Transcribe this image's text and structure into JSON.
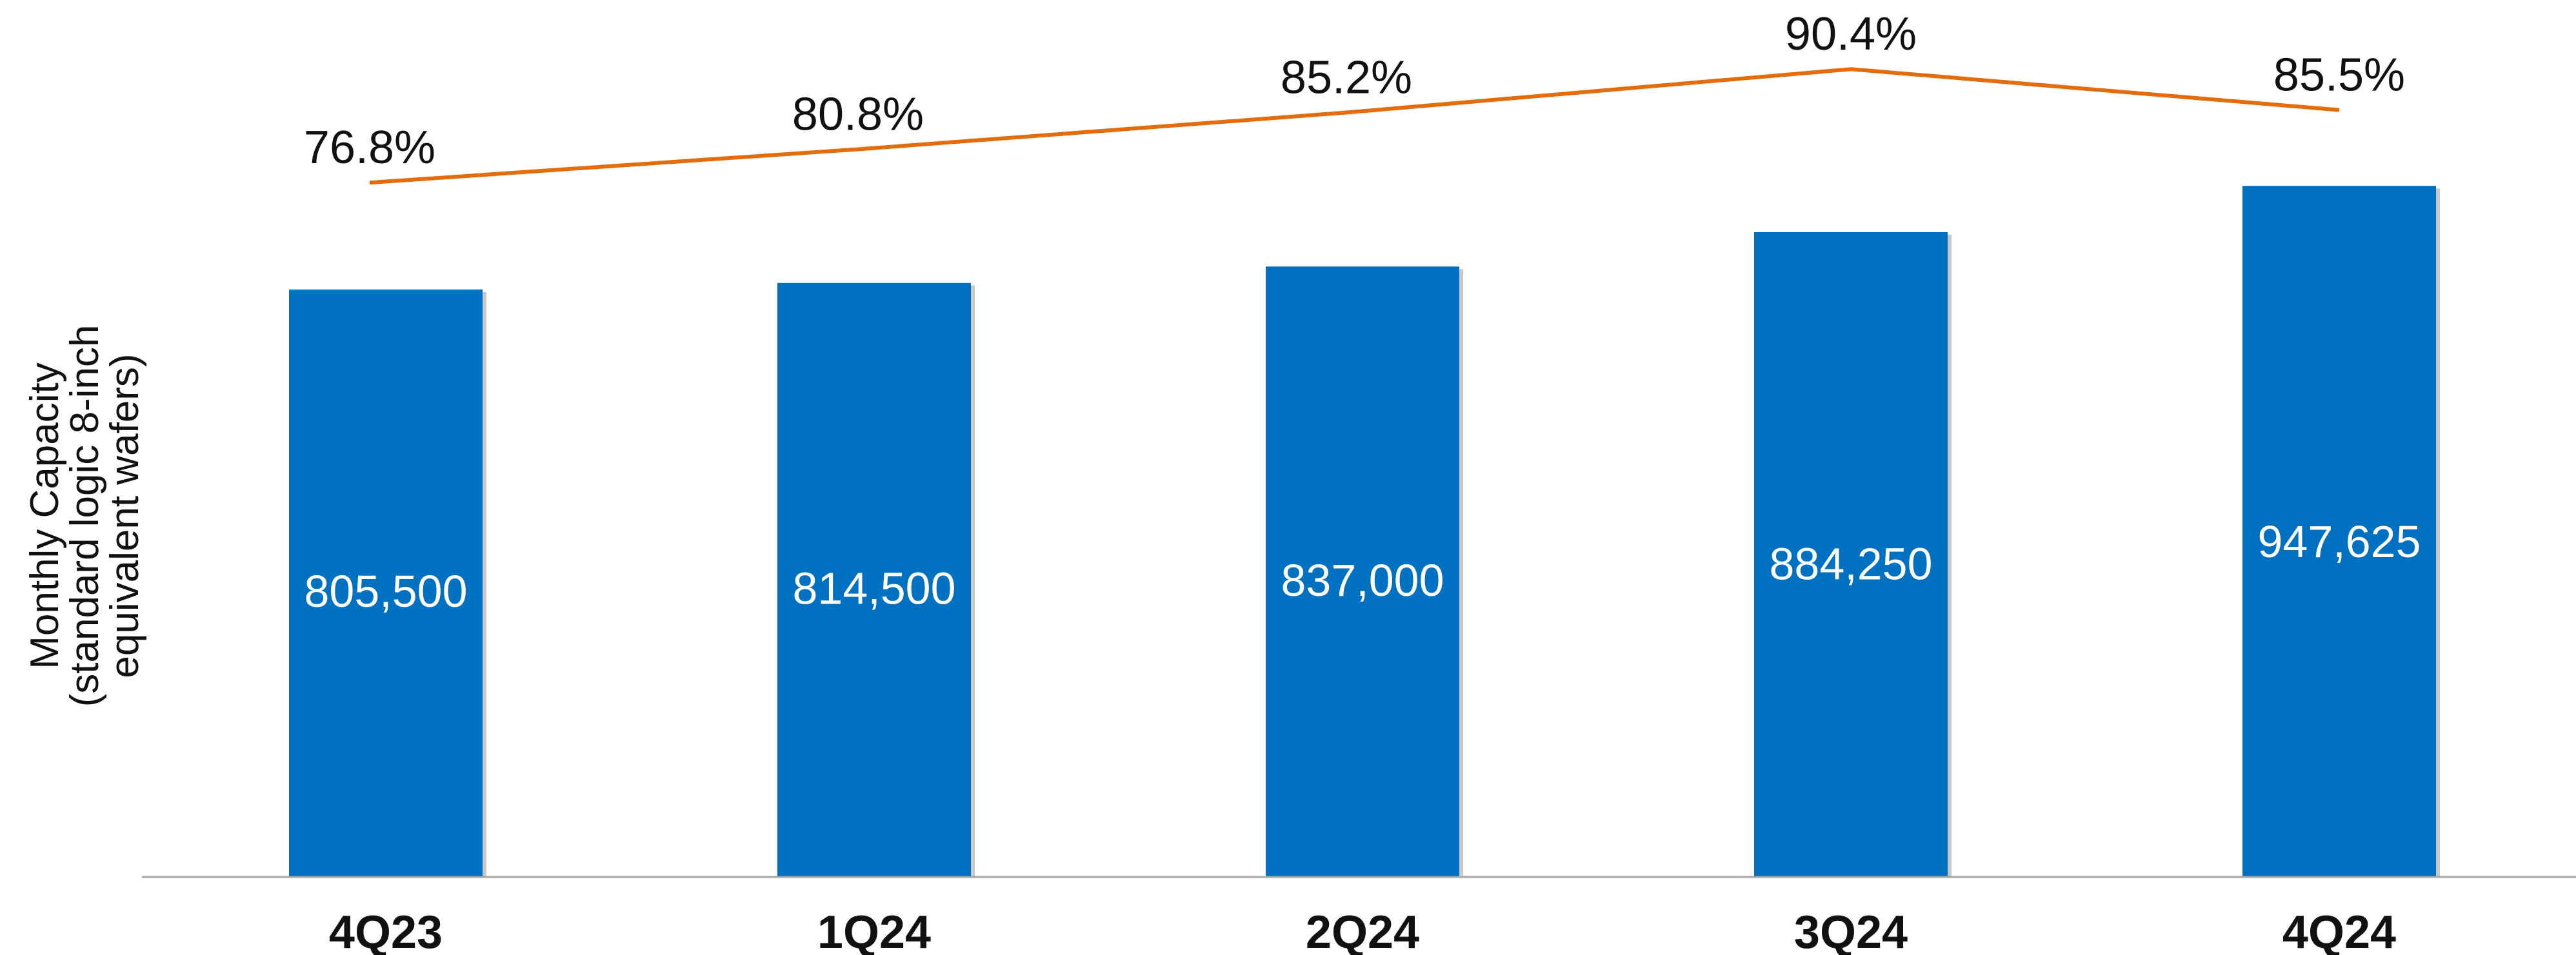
{
  "chart_data": {
    "type": "bar",
    "title": "",
    "categories": [
      "4Q23",
      "1Q24",
      "2Q24",
      "3Q24",
      "4Q24"
    ],
    "series": [
      {
        "type": "bar",
        "values": [
          805500,
          814500,
          837000,
          884250,
          947625
        ],
        "value_labels": [
          "805,500",
          "814,500",
          "837,000",
          "884,250",
          "947,625"
        ],
        "color": "#0070C0"
      },
      {
        "type": "line",
        "values": [
          76.8,
          80.8,
          85.2,
          90.4,
          85.5
        ],
        "value_labels": [
          "76.8%",
          "80.8%",
          "85.2%",
          "90.4%",
          "85.5%"
        ],
        "color": "#E46C0A"
      }
    ],
    "ylabel_lines": [
      "Monthly Capacity",
      "(standard logic 8-inch",
      "equivalent wafers)"
    ],
    "ylim": [
      0,
      1000000
    ],
    "y2lim": [
      0,
      100
    ],
    "grid": false,
    "legend": "none",
    "baseline_color": "#A6A6A6"
  }
}
